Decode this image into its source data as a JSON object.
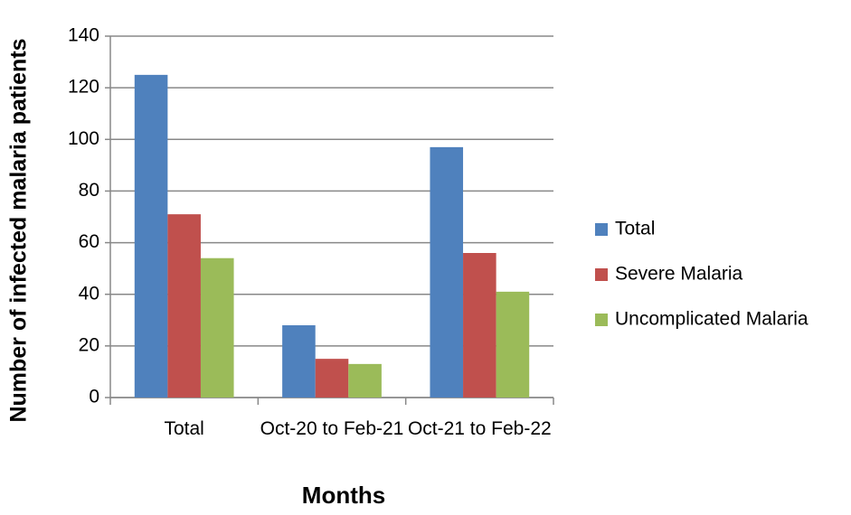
{
  "chart_data": {
    "type": "bar",
    "x_label": "Months",
    "y_label": "Number of infected malaria patients",
    "categories": [
      "Total",
      "Oct-20 to Feb-21",
      "Oct-21 to Feb-22"
    ],
    "series": [
      {
        "name": "Total",
        "color": "#4f81bd",
        "values": [
          125,
          28,
          97
        ]
      },
      {
        "name": "Severe Malaria",
        "color": "#c0504d",
        "values": [
          71,
          15,
          56
        ]
      },
      {
        "name": "Uncomplicated Malaria",
        "color": "#9bbb59",
        "values": [
          54,
          13,
          41
        ]
      }
    ],
    "ylim": [
      0,
      140
    ],
    "yticks": [
      0,
      20,
      40,
      60,
      80,
      100,
      120,
      140
    ],
    "grid": true,
    "legend": "right"
  }
}
